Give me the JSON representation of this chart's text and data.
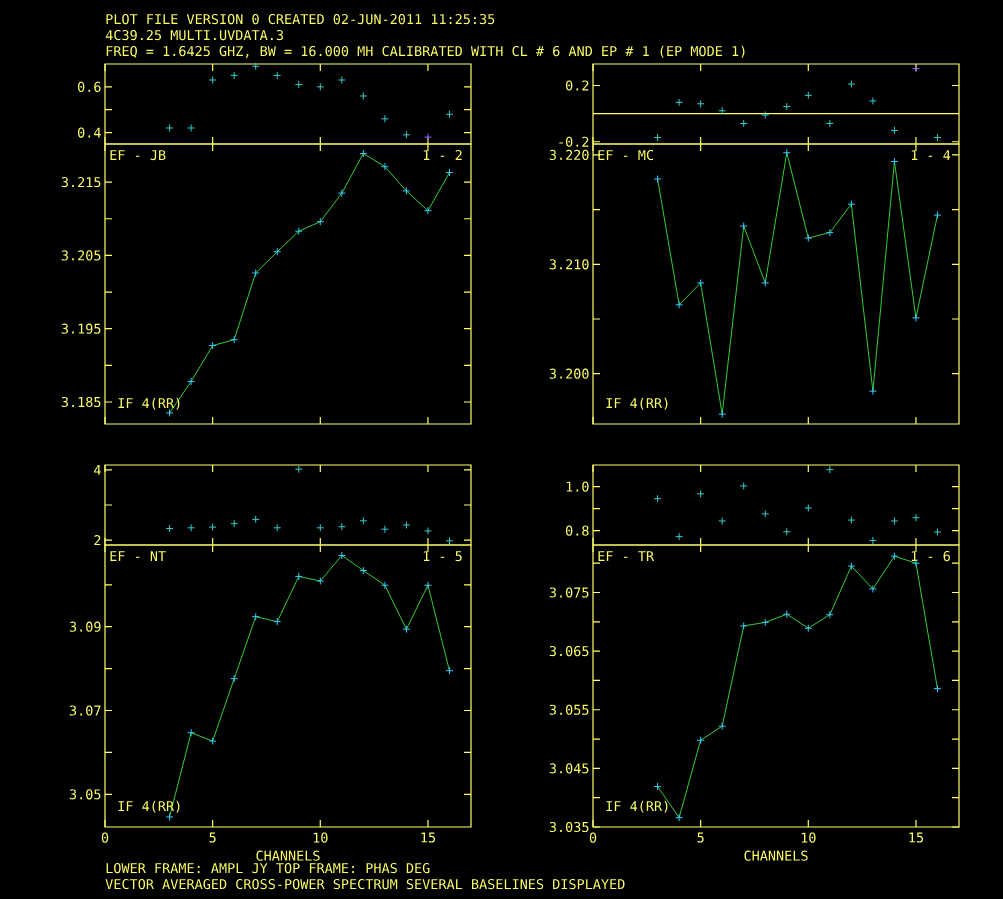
{
  "chart_data": [
    {
      "type": "scatter",
      "title": "PLOT FILE VERSION 0  CREATED 02-JUN-2011 11:25:35",
      "subtitle": "4C39.25   MULTI.UVDATA.3",
      "annotations": [
        "FREQ = 1.6425 GHZ, BW = 16.000 MH   CALIBRATED WITH CL # 6 AND EP # 1 (EP MODE 1)"
      ],
      "x": [
        3,
        4,
        5,
        6,
        7,
        8,
        9,
        10,
        11,
        12,
        13,
        14,
        15,
        16
      ],
      "series": [
        {
          "colors": [
            "#33cccc",
            "#33cccc",
            "#33cccc",
            "#33cccc",
            "#33cccc",
            "#33cccc",
            "#33cccc",
            "#33cccc",
            "#33cccc",
            "#33cccc",
            "#33cccc",
            "#33cccc",
            "#9966ff",
            "#33cccc"
          ],
          "values": [
            0.42,
            0.42,
            0.63,
            0.65,
            0.69,
            0.65,
            0.61,
            0.6,
            0.63,
            0.56,
            0.46,
            0.39,
            0.38,
            0.48
          ]
        }
      ],
      "marker": "cross",
      "xlim": [
        0,
        17
      ],
      "ylim": [
        0.35,
        0.7
      ],
      "xticks": [
        0,
        5,
        10,
        15
      ],
      "yticks": [
        0.4,
        {
          "value": 0.5,
          "label": null
        },
        0.6
      ],
      "tick_labels": "y"
    },
    {
      "type": "line",
      "annotations": [
        "EF - JB",
        "1 - 2",
        "IF 4(RR)"
      ],
      "x": [
        3,
        4,
        5,
        6,
        7,
        8,
        9,
        10,
        11,
        12,
        13,
        14,
        15,
        16
      ],
      "series": [
        {
          "color": "#33cc33",
          "values": [
            3.1835,
            3.1878,
            3.1927,
            3.1935,
            3.2026,
            3.2055,
            3.2083,
            3.2096,
            3.2135,
            3.2189,
            3.2171,
            3.2138,
            3.2111,
            3.2163
          ]
        }
      ],
      "marker": "cross",
      "line_style": "solid",
      "xlim": [
        0,
        17
      ],
      "ylim": [
        3.182,
        3.2202
      ],
      "xticks": [
        0,
        5,
        10,
        15
      ],
      "yticks": [
        3.185,
        {
          "value": 3.19,
          "label": null
        },
        3.195,
        {
          "value": 3.2,
          "label": null
        },
        3.205,
        {
          "value": 3.21,
          "label": null
        },
        3.215
      ],
      "tick_labels": "y"
    },
    {
      "type": "scatter",
      "x": [
        3,
        4,
        5,
        6,
        7,
        8,
        9,
        10,
        11,
        12,
        13,
        14,
        15,
        16
      ],
      "series": [
        {
          "colors": [
            "#33cccc",
            "#33cccc",
            "#33cccc",
            "#33cccc",
            "#33cccc",
            "#33cccc",
            "#33cccc",
            "#33cccc",
            "#33cccc",
            "#33cccc",
            "#33cccc",
            "#33cccc",
            "#9966ff",
            "#33cccc"
          ],
          "values": [
            -0.17,
            0.08,
            0.07,
            0.02,
            -0.07,
            -0.01,
            0.05,
            0.13,
            -0.07,
            0.21,
            0.09,
            -0.12,
            0.32,
            -0.17
          ]
        }
      ],
      "ref_lines": [
        {
          "axis": "y",
          "value": 0
        }
      ],
      "marker": "cross",
      "xlim": [
        0,
        17
      ],
      "ylim": [
        -0.216,
        0.353
      ],
      "xticks": [
        0,
        5,
        10,
        15
      ],
      "yticks": [
        -0.2,
        0.2
      ],
      "tick_labels": "y"
    },
    {
      "type": "line",
      "annotations": [
        "EF - MC",
        "1 - 4",
        "IF 4(RR)"
      ],
      "x": [
        3,
        4,
        5,
        6,
        7,
        8,
        9,
        10,
        11,
        12,
        13,
        14,
        15,
        16
      ],
      "series": [
        {
          "color": "#33cc33",
          "values": [
            3.2178,
            3.2063,
            3.2083,
            3.1963,
            3.2135,
            3.2083,
            3.2202,
            3.2124,
            3.2129,
            3.2155,
            3.1984,
            3.2194,
            3.2051,
            3.2145
          ]
        }
      ],
      "marker": "cross",
      "line_style": "solid",
      "xlim": [
        0,
        17
      ],
      "ylim": [
        3.1954,
        3.221
      ],
      "xticks": [
        0,
        5,
        10,
        15
      ],
      "yticks": [
        {
          "value": 3.2,
          "label": "3.200"
        },
        {
          "value": 3.205,
          "label": null
        },
        {
          "value": 3.21,
          "label": "3.210"
        },
        {
          "value": 3.215,
          "label": null
        },
        {
          "value": 3.22,
          "label": "3.220"
        }
      ],
      "tick_labels": "y"
    },
    {
      "type": "scatter",
      "x": [
        3,
        4,
        5,
        6,
        7,
        8,
        9,
        10,
        11,
        12,
        13,
        14,
        15,
        16
      ],
      "series": [
        {
          "color": "#33cccc",
          "values": [
            2.33,
            2.35,
            2.37,
            2.47,
            2.59,
            2.35,
            4.02,
            2.35,
            2.38,
            2.55,
            2.31,
            2.43,
            2.26,
            1.98
          ]
        }
      ],
      "marker": "cross",
      "xlim": [
        0,
        17
      ],
      "ylim": [
        1.86,
        4.14
      ],
      "xticks": [
        0,
        5,
        10,
        15
      ],
      "yticks": [
        2,
        {
          "value": 3,
          "label": null
        },
        4
      ],
      "tick_labels": "y"
    },
    {
      "type": "line",
      "xlabel": "CHANNELS",
      "annotations": [
        "EF - NT",
        "1 - 5",
        "IF 4(RR)",
        "LOWER FRAME: AMPL JY   TOP FRAME: PHAS DEG",
        "VECTOR AVERAGED CROSS-POWER SPECTRUM    SEVERAL BASELINES DISPLAYED"
      ],
      "x": [
        3,
        4,
        5,
        6,
        7,
        8,
        9,
        10,
        11,
        12,
        13,
        14,
        15,
        16
      ],
      "series": [
        {
          "color": "#33cc33",
          "values": [
            3.0446,
            3.0647,
            3.0627,
            3.0776,
            3.0924,
            3.0912,
            3.102,
            3.1009,
            3.107,
            3.1034,
            3.0999,
            3.0894,
            3.0999,
            3.0795
          ]
        }
      ],
      "marker": "cross",
      "line_style": "solid",
      "xlim": [
        0,
        17
      ],
      "ylim": [
        3.0422,
        3.1095
      ],
      "xticks": [
        0,
        5,
        10,
        15
      ],
      "yticks": [
        3.05,
        {
          "value": 3.06,
          "label": null
        },
        3.07,
        {
          "value": 3.08,
          "label": null
        },
        3.09,
        {
          "value": 3.1,
          "label": null
        }
      ]
    },
    {
      "type": "scatter",
      "x": [
        3,
        4,
        5,
        6,
        7,
        8,
        9,
        10,
        11,
        12,
        13,
        14,
        15,
        16
      ],
      "series": [
        {
          "color": "#33cccc",
          "values": [
            0.945,
            0.773,
            0.967,
            0.844,
            1.003,
            0.876,
            0.795,
            0.903,
            1.077,
            0.848,
            0.755,
            0.844,
            0.859,
            0.794
          ]
        }
      ],
      "marker": "cross",
      "xlim": [
        0,
        17
      ],
      "ylim": [
        0.735,
        1.098
      ],
      "xticks": [
        0,
        5,
        10,
        15
      ],
      "yticks": [
        0.8,
        {
          "value": 0.9,
          "label": null
        },
        {
          "value": 1.0,
          "label": "1.0"
        }
      ],
      "tick_labels": "y"
    },
    {
      "type": "line",
      "xlabel": "CHANNELS",
      "annotations": [
        "EF - TR",
        "1 - 6",
        "IF 4(RR)"
      ],
      "x": [
        3,
        4,
        5,
        6,
        7,
        8,
        9,
        10,
        11,
        12,
        13,
        14,
        15,
        16
      ],
      "series": [
        {
          "color": "#33cc33",
          "values": [
            3.0419,
            3.0366,
            3.0498,
            3.0522,
            3.0693,
            3.0699,
            3.0713,
            3.0689,
            3.0712,
            3.0795,
            3.0756,
            3.0812,
            3.08,
            3.0586
          ]
        }
      ],
      "marker": "cross",
      "line_style": "solid",
      "xlim": [
        0,
        17
      ],
      "ylim": [
        3.035,
        3.0831
      ],
      "xticks": [
        0,
        5,
        10,
        15
      ],
      "yticks": [
        3.035,
        {
          "value": 3.04,
          "label": null
        },
        3.045,
        {
          "value": 3.05,
          "label": null
        },
        3.055,
        {
          "value": 3.06,
          "label": null
        },
        3.065,
        {
          "value": 3.07,
          "label": null
        },
        3.075,
        {
          "value": 3.08,
          "label": null
        }
      ]
    }
  ]
}
